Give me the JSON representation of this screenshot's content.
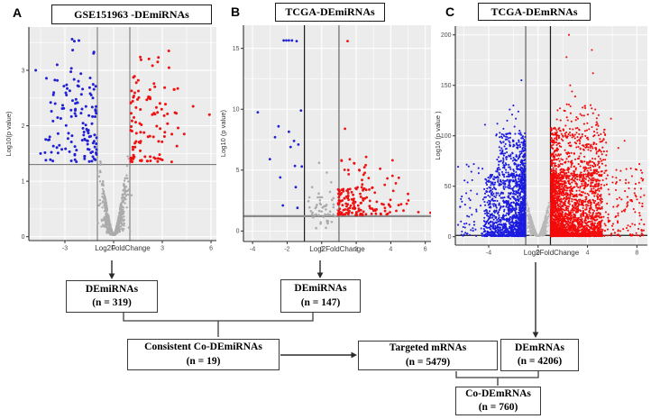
{
  "panel_labels": [
    "A",
    "B",
    "C"
  ],
  "chart_data": [
    {
      "type": "scatter",
      "variant": "volcano",
      "panel": "A",
      "seed": 7,
      "title": "GSE151963 -DEmiRNAs",
      "xlabel": "Log2FoldChange",
      "ylabel": "Log10(p value)",
      "xlim": [
        -5.22,
        6.33
      ],
      "ylim": [
        -0.07,
        3.78
      ],
      "xticks": [
        -3,
        0,
        3,
        6
      ],
      "yticks": [
        0,
        1,
        2,
        3
      ],
      "grid": true,
      "legend": "none",
      "point_colors": {
        "up": "#EE1111",
        "down": "#2121D2",
        "ns": "#ABABAB"
      },
      "thresholds": {
        "vlines": [
          {
            "x": -1,
            "color": "#6e6e6e",
            "w": 1
          },
          {
            "x": 1,
            "color": "#6e6e6e",
            "w": 1
          }
        ],
        "hlines": [
          {
            "y": 1.3,
            "color": "#6e6e6e",
            "w": 1
          }
        ]
      },
      "series": [
        {
          "name": "not-significant",
          "color": "ns",
          "r": 1.2,
          "clusters": [
            {
              "mode": "funnel",
              "n": 650,
              "xmax": 1.25,
              "y": [
                0.03,
                2.45
              ]
            }
          ]
        },
        {
          "name": "downregulated",
          "color": "down",
          "r": 1.5,
          "clusters": [
            {
              "n": 125,
              "x": [
                -1.05,
                -4.3
              ],
              "xbias": 1.7,
              "y": [
                1.35,
                2.95
              ],
              "ypow": 1.4
            },
            {
              "n": 9,
              "x": [
                -1.2,
                -3.6
              ],
              "y": [
                2.95,
                3.7
              ],
              "pts": [
                [
                  -4.8,
                  3.0
                ],
                [
                  -4.5,
                  1.5
                ]
              ]
            }
          ]
        },
        {
          "name": "upregulated",
          "color": "up",
          "r": 1.5,
          "clusters": [
            {
              "n": 100,
              "x": [
                1.05,
                4.0
              ],
              "xbias": 1.7,
              "y": [
                1.35,
                2.9
              ],
              "ypow": 1.4
            },
            {
              "n": 7,
              "x": [
                1.4,
                3.9
              ],
              "y": [
                2.9,
                3.4
              ],
              "pts": [
                [
                  5.9,
                  2.2
                ],
                [
                  4.9,
                  2.35
                ],
                [
                  4.35,
                  1.85
                ],
                [
                  3.4,
                  3.35
                ]
              ]
            }
          ]
        }
      ]
    },
    {
      "type": "scatter",
      "variant": "volcano",
      "panel": "B",
      "seed": 11,
      "title": "TCGA-DEmiRNAs",
      "xlabel": "Log2FoldChange",
      "ylabel": "Log10 (p value)",
      "xlim": [
        -4.53,
        6.33
      ],
      "ylim": [
        -0.86,
        16.9
      ],
      "xticks": [
        -4,
        -2,
        0,
        2,
        4,
        6
      ],
      "yticks": [
        0,
        5,
        10,
        15
      ],
      "grid": true,
      "legend": "none",
      "point_colors": {
        "up": "#EE1111",
        "down": "#2121D2",
        "ns": "#ABABAB"
      },
      "thresholds": {
        "vlines": [
          {
            "x": -1,
            "color": "#1a1a1a",
            "w": 1.2
          },
          {
            "x": 1,
            "color": "#8f8f8f",
            "w": 1.7
          }
        ],
        "hlines": [
          {
            "y": 1.22,
            "color": "#8a8a8a",
            "w": 2.2
          }
        ]
      },
      "series": [
        {
          "name": "not-significant",
          "color": "ns",
          "r": 1.3,
          "clusters": [
            {
              "n": 40,
              "x": [
                -0.85,
                0.95
              ],
              "y": [
                1.3,
                3.3
              ],
              "ypow": 1.8
            },
            {
              "n": 12,
              "x": [
                -0.5,
                0.95
              ],
              "y": [
                0.15,
                1.25
              ],
              "pts": [
                [
                  -0.15,
                  5.6
                ],
                [
                  0.3,
                  4.8
                ],
                [
                  0.55,
                  4.0
                ],
                [
                  -0.55,
                  3.6
                ]
              ]
            }
          ]
        },
        {
          "name": "downregulated",
          "color": "down",
          "r": 1.4,
          "clusters": [
            {
              "pts": [
                [
                  -2.2,
                  15.65
                ],
                [
                  -2.05,
                  15.65
                ],
                [
                  -1.9,
                  15.65
                ],
                [
                  -1.72,
                  15.65
                ],
                [
                  -1.45,
                  15.6
                ],
                [
                  -3.7,
                  9.75
                ],
                [
                  -1.2,
                  9.9
                ],
                [
                  -2.5,
                  8.6
                ],
                [
                  -1.9,
                  8.15
                ],
                [
                  -2.7,
                  7.7
                ],
                [
                  -1.6,
                  7.4
                ],
                [
                  -1.35,
                  7.1
                ],
                [
                  -3.0,
                  5.9
                ],
                [
                  -1.55,
                  5.35
                ],
                [
                  -2.4,
                  4.4
                ],
                [
                  -1.5,
                  3.6
                ],
                [
                  -2.25,
                  2.1
                ],
                [
                  -1.4,
                  1.9
                ],
                [
                  -1.15,
                  5.3
                ],
                [
                  -1.8,
                  6.9
                ]
              ]
            }
          ]
        },
        {
          "name": "upregulated",
          "color": "up",
          "r": 1.4,
          "clusters": [
            {
              "n": 130,
              "x": [
                0.95,
                3.2
              ],
              "xbias": 1.6,
              "y": [
                1.3,
                3.6
              ],
              "ypow": 1.5
            },
            {
              "n": 30,
              "x": [
                1.1,
                4.6
              ],
              "y": [
                3.4,
                6.2
              ],
              "ypow": 1.2
            },
            {
              "n": 18,
              "x": [
                3.2,
                5.6
              ],
              "y": [
                1.35,
                2.6
              ],
              "pts": [
                [
                  1.5,
                  15.6
                ],
                [
                  1.35,
                  8.4
                ],
                [
                  6.3,
                  1.5
                ],
                [
                  5.6,
                  1.55
                ],
                [
                  5.0,
                  3.05
                ],
                [
                  4.6,
                  2.2
                ],
                [
                  4.15,
                  3.3
                ]
              ]
            }
          ]
        }
      ]
    },
    {
      "type": "scatter",
      "variant": "volcano",
      "panel": "C",
      "seed": 23,
      "title": "TCGA-DEmRNAs",
      "xlabel": "Log2FoldChange",
      "ylabel": "Log10 (p value )",
      "xlim": [
        -6.7,
        8.85
      ],
      "ylim": [
        -8.3,
        208.7
      ],
      "xticks": [
        -4,
        0,
        4,
        8
      ],
      "yticks": [
        0,
        50,
        100,
        150,
        200
      ],
      "grid": true,
      "legend": "none",
      "point_colors": {
        "up": "#F30A0A",
        "down": "#1B1BE0",
        "ns": "#B8B8B8"
      },
      "thresholds": {
        "vlines": [
          {
            "x": -1,
            "color": "#8f8f8f",
            "w": 1.8
          },
          {
            "x": 1,
            "color": "#1a1a1a",
            "w": 1.2
          }
        ],
        "hlines": [
          {
            "y": 1.3,
            "color": "#1a1a1a",
            "w": 1.2
          }
        ]
      },
      "series": [
        {
          "name": "not-significant",
          "color": "ns",
          "r": 0.9,
          "clusters": [
            {
              "mode": "funnel",
              "n": 1400,
              "xmax": 1.15,
              "y": [
                0.5,
                52
              ]
            }
          ]
        },
        {
          "name": "downregulated",
          "color": "down",
          "r": 1.05,
          "clusters": [
            {
              "n": 1500,
              "x": [
                -1.05,
                -4.4
              ],
              "xbias": 2.2,
              "y": [
                0.5,
                62
              ],
              "ypow": 2.0
            },
            {
              "n": 280,
              "x": [
                -1.05,
                -3.4
              ],
              "xbias": 1.8,
              "y": [
                60,
                103
              ],
              "ypow": 1.3
            },
            {
              "n": 55,
              "x": [
                -6.5,
                -4.4
              ],
              "y": [
                0.5,
                75
              ],
              "ypow": 1.5,
              "pts": [
                [
                  -1.35,
                  155
                ],
                [
                  -2.0,
                  130
                ],
                [
                  -2.3,
                  126
                ],
                [
                  -1.6,
                  124
                ],
                [
                  -2.1,
                  121
                ],
                [
                  -1.8,
                  117
                ],
                [
                  -2.5,
                  115
                ],
                [
                  -3.3,
                  112
                ],
                [
                  -4.3,
                  111
                ],
                [
                  -1.9,
                  109
                ],
                [
                  -2.8,
                  107
                ],
                [
                  -5.2,
                  72
                ],
                [
                  -1.5,
                  105
                ]
              ]
            }
          ]
        },
        {
          "name": "upregulated",
          "color": "up",
          "r": 1.05,
          "clusters": [
            {
              "n": 2300,
              "x": [
                1.05,
                5.2
              ],
              "xbias": 2.0,
              "y": [
                0.5,
                62
              ],
              "ypow": 2.0
            },
            {
              "n": 430,
              "x": [
                1.05,
                5.6
              ],
              "xbias": 1.7,
              "y": [
                60,
                108
              ],
              "ypow": 1.3
            },
            {
              "n": 36,
              "x": [
                1.4,
                5.0
              ],
              "y": [
                108,
                132
              ]
            },
            {
              "n": 130,
              "x": [
                5.2,
                8.6
              ],
              "y": [
                0.5,
                70
              ],
              "ypow": 1.6,
              "pts": [
                [
                  2.5,
                  200
                ],
                [
                  4.35,
                  185
                ],
                [
                  2.3,
                  178
                ],
                [
                  4.45,
                  162
                ],
                [
                  2.6,
                  150
                ],
                [
                  2.75,
                  144
                ],
                [
                  3.0,
                  139
                ],
                [
                  2.5,
                  131
                ],
                [
                  3.6,
                  128
                ],
                [
                  5.9,
                  117
                ],
                [
                  7.0,
                  95
                ],
                [
                  6.5,
                  88
                ],
                [
                  8.2,
                  72
                ],
                [
                  7.6,
                  60
                ],
                [
                  8.45,
                  30
                ]
              ]
            }
          ]
        }
      ]
    }
  ],
  "flowchart": {
    "boxes": [
      {
        "id": "demirnas-gse151963",
        "line1": "DEmiRNAs",
        "line2": "(n = 319)"
      },
      {
        "id": "demirnas-tcga",
        "line1": "DEmiRNAs",
        "line2": "(n = 147)"
      },
      {
        "id": "consistent-co-demirnas",
        "line1": "Consistent Co-DEmiRNAs",
        "line2": "(n = 19)"
      },
      {
        "id": "targeted-mrnas",
        "line1": "Targeted mRNAs",
        "line2": "(n = 5479)"
      },
      {
        "id": "demrnas",
        "line1": "DEmRNAs",
        "line2": "(n = 4206)"
      },
      {
        "id": "co-demrnas",
        "line1": "Co-DEmRNAs",
        "line2": "(n = 760)"
      }
    ]
  }
}
